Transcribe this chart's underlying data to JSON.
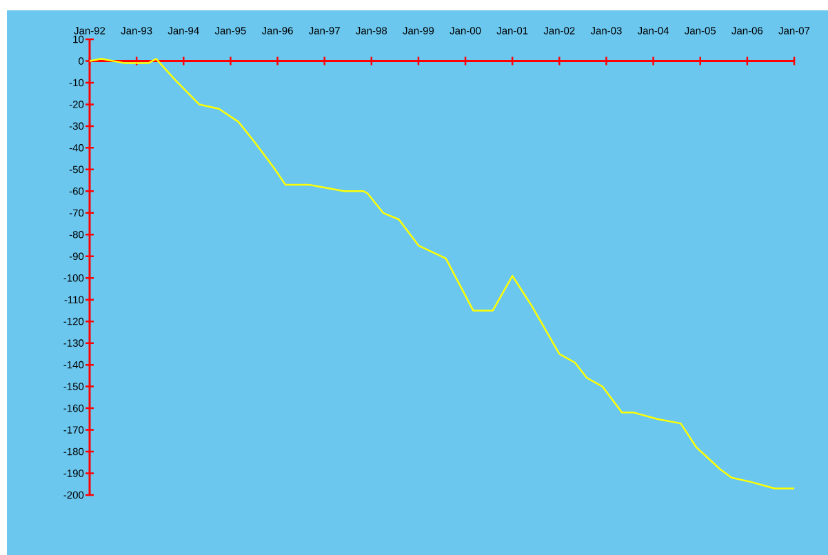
{
  "chart_data": {
    "type": "line",
    "x": [
      "1992-01",
      "1992-04",
      "1992-10",
      "1993-04",
      "1993-06",
      "1993-11",
      "1994-05",
      "1994-10",
      "1995-03",
      "1995-07",
      "1995-12",
      "1996-03",
      "1996-09",
      "1996-12",
      "1997-06",
      "1997-11",
      "1997-12",
      "1998-04",
      "1998-08",
      "1999-01",
      "1999-08",
      "2000-03",
      "2000-08",
      "2001-01",
      "2001-06",
      "2002-01",
      "2002-05",
      "2002-08",
      "2002-12",
      "2003-05",
      "2003-08",
      "2004-02",
      "2004-08",
      "2004-12",
      "2005-06",
      "2005-09",
      "2006-02",
      "2006-08",
      "2007-01"
    ],
    "series": [
      {
        "color": "#ffff00",
        "values": [
          0,
          1,
          -1,
          -1,
          1,
          -9,
          -20,
          -22,
          -28,
          -37,
          -49,
          -57,
          -57,
          -58,
          -60,
          -60,
          -61,
          -70,
          -73,
          -85,
          -91,
          -115,
          -115,
          -99,
          -113,
          -135,
          -139,
          -146,
          -150,
          -162,
          -162,
          -165,
          -167,
          -178,
          -188,
          -192,
          -194,
          -197,
          -197
        ]
      }
    ],
    "xlim": [
      "1992-01",
      "2007-01"
    ],
    "xticks": [
      {
        "value": "1992-01",
        "label": "Jan-92"
      },
      {
        "value": "1993-01",
        "label": "Jan-93"
      },
      {
        "value": "1994-01",
        "label": "Jan-94"
      },
      {
        "value": "1995-01",
        "label": "Jan-95"
      },
      {
        "value": "1996-01",
        "label": "Jan-96"
      },
      {
        "value": "1997-01",
        "label": "Jan-97"
      },
      {
        "value": "1998-01",
        "label": "Jan-98"
      },
      {
        "value": "1999-01",
        "label": "Jan-99"
      },
      {
        "value": "2000-01",
        "label": "Jan-00"
      },
      {
        "value": "2001-01",
        "label": "Jan-01"
      },
      {
        "value": "2002-01",
        "label": "Jan-02"
      },
      {
        "value": "2003-01",
        "label": "Jan-03"
      },
      {
        "value": "2004-01",
        "label": "Jan-04"
      },
      {
        "value": "2005-01",
        "label": "Jan-05"
      },
      {
        "value": "2006-01",
        "label": "Jan-06"
      },
      {
        "value": "2007-01",
        "label": "Jan-07"
      }
    ],
    "ylim": [
      -200,
      10
    ],
    "yticks": [
      10,
      0,
      -10,
      -20,
      -30,
      -40,
      -50,
      -60,
      -70,
      -80,
      -90,
      -100,
      -110,
      -120,
      -130,
      -140,
      -150,
      -160,
      -170,
      -180,
      -190,
      -200
    ],
    "grid": false,
    "marker": "none",
    "line_style": "solid"
  }
}
